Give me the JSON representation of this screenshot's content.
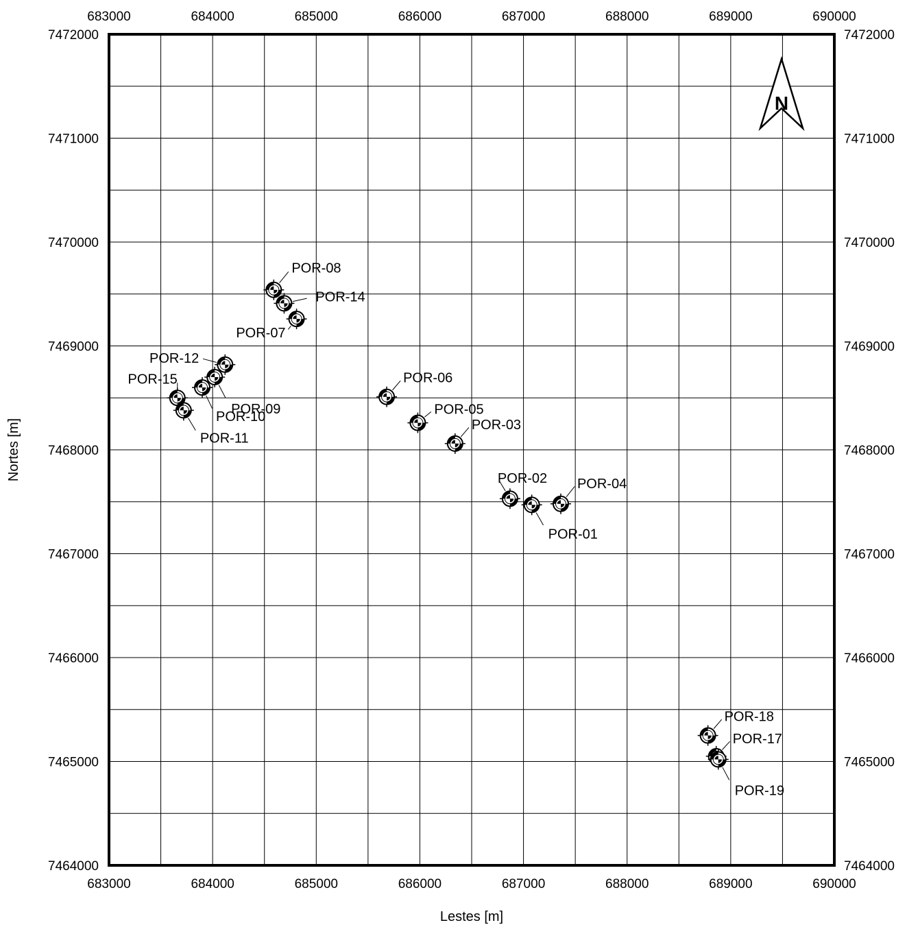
{
  "chart_data": {
    "type": "scatter",
    "title": "",
    "xlabel": "Lestes [m]",
    "ylabel": "Nortes [m]",
    "xlim": [
      683000,
      690000
    ],
    "ylim": [
      7464000,
      7472000
    ],
    "grid": true,
    "x_ticks": [
      "683000",
      "684000",
      "685000",
      "686000",
      "687000",
      "688000",
      "689000",
      "690000"
    ],
    "y_ticks": [
      "7464000",
      "7465000",
      "7466000",
      "7467000",
      "7468000",
      "7469000",
      "7470000",
      "7471000",
      "7472000"
    ],
    "north_arrow": {
      "label": "N",
      "placement": "top-right"
    },
    "marker": "well-symbol-circle-quadrants",
    "points": [
      {
        "name": "POR-08",
        "x": 684590,
        "y": 7469540
      },
      {
        "name": "POR-14",
        "x": 684690,
        "y": 7469410
      },
      {
        "name": "POR-07",
        "x": 684810,
        "y": 7469260
      },
      {
        "name": "POR-12",
        "x": 684120,
        "y": 7468820
      },
      {
        "name": "POR-09",
        "x": 684020,
        "y": 7468700
      },
      {
        "name": "POR-10",
        "x": 683900,
        "y": 7468600
      },
      {
        "name": "POR-15",
        "x": 683660,
        "y": 7468500
      },
      {
        "name": "POR-11",
        "x": 683720,
        "y": 7468380
      },
      {
        "name": "POR-06",
        "x": 685680,
        "y": 7468510
      },
      {
        "name": "POR-05",
        "x": 685980,
        "y": 7468260
      },
      {
        "name": "POR-03",
        "x": 686340,
        "y": 7468060
      },
      {
        "name": "POR-02",
        "x": 686870,
        "y": 7467530
      },
      {
        "name": "POR-01",
        "x": 687080,
        "y": 7467470
      },
      {
        "name": "POR-04",
        "x": 687360,
        "y": 7467480
      },
      {
        "name": "POR-18",
        "x": 688780,
        "y": 7465250
      },
      {
        "name": "POR-17",
        "x": 688860,
        "y": 7465050
      },
      {
        "name": "POR-19",
        "x": 688880,
        "y": 7465020
      }
    ]
  }
}
